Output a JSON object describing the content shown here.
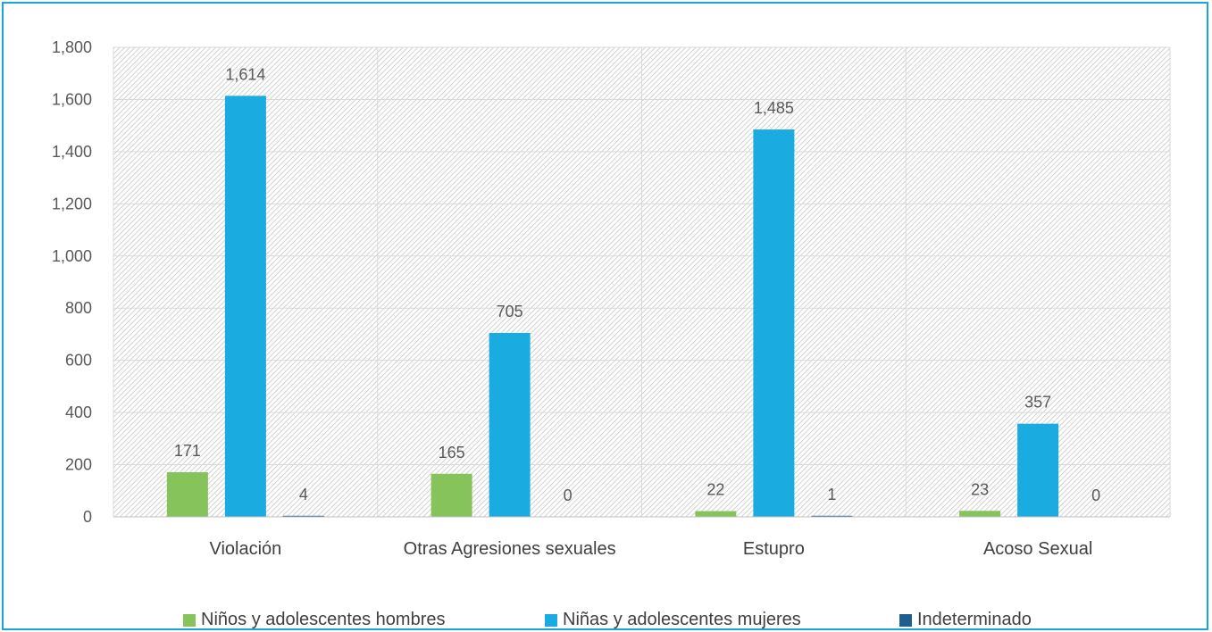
{
  "chart_data": {
    "type": "bar",
    "categories": [
      "Violación",
      "Otras Agresiones sexuales",
      "Estupro",
      "Acoso Sexual"
    ],
    "series": [
      {
        "name": "Niños y adolescentes hombres",
        "values": [
          171,
          165,
          22,
          23
        ],
        "color": "#86c35a"
      },
      {
        "name": "Niñas y adolescentes mujeres",
        "values": [
          1614,
          705,
          1485,
          357
        ],
        "color": "#1aace1"
      },
      {
        "name": "Indeterminado",
        "values": [
          4,
          0,
          1,
          0
        ],
        "color": "#1f5f8f"
      }
    ],
    "data_labels": [
      [
        "171",
        "165",
        "22",
        "23"
      ],
      [
        "1,614",
        "705",
        "1,485",
        "357"
      ],
      [
        "4",
        "0",
        "1",
        "0"
      ]
    ],
    "ylim": [
      0,
      1800
    ],
    "yticks": [
      "0",
      "200",
      "400",
      "600",
      "800",
      "1,000",
      "1,200",
      "1,400",
      "1,600",
      "1,800"
    ],
    "grid": true,
    "legend_position": "bottom",
    "plot_background": "diagonal hatch"
  }
}
